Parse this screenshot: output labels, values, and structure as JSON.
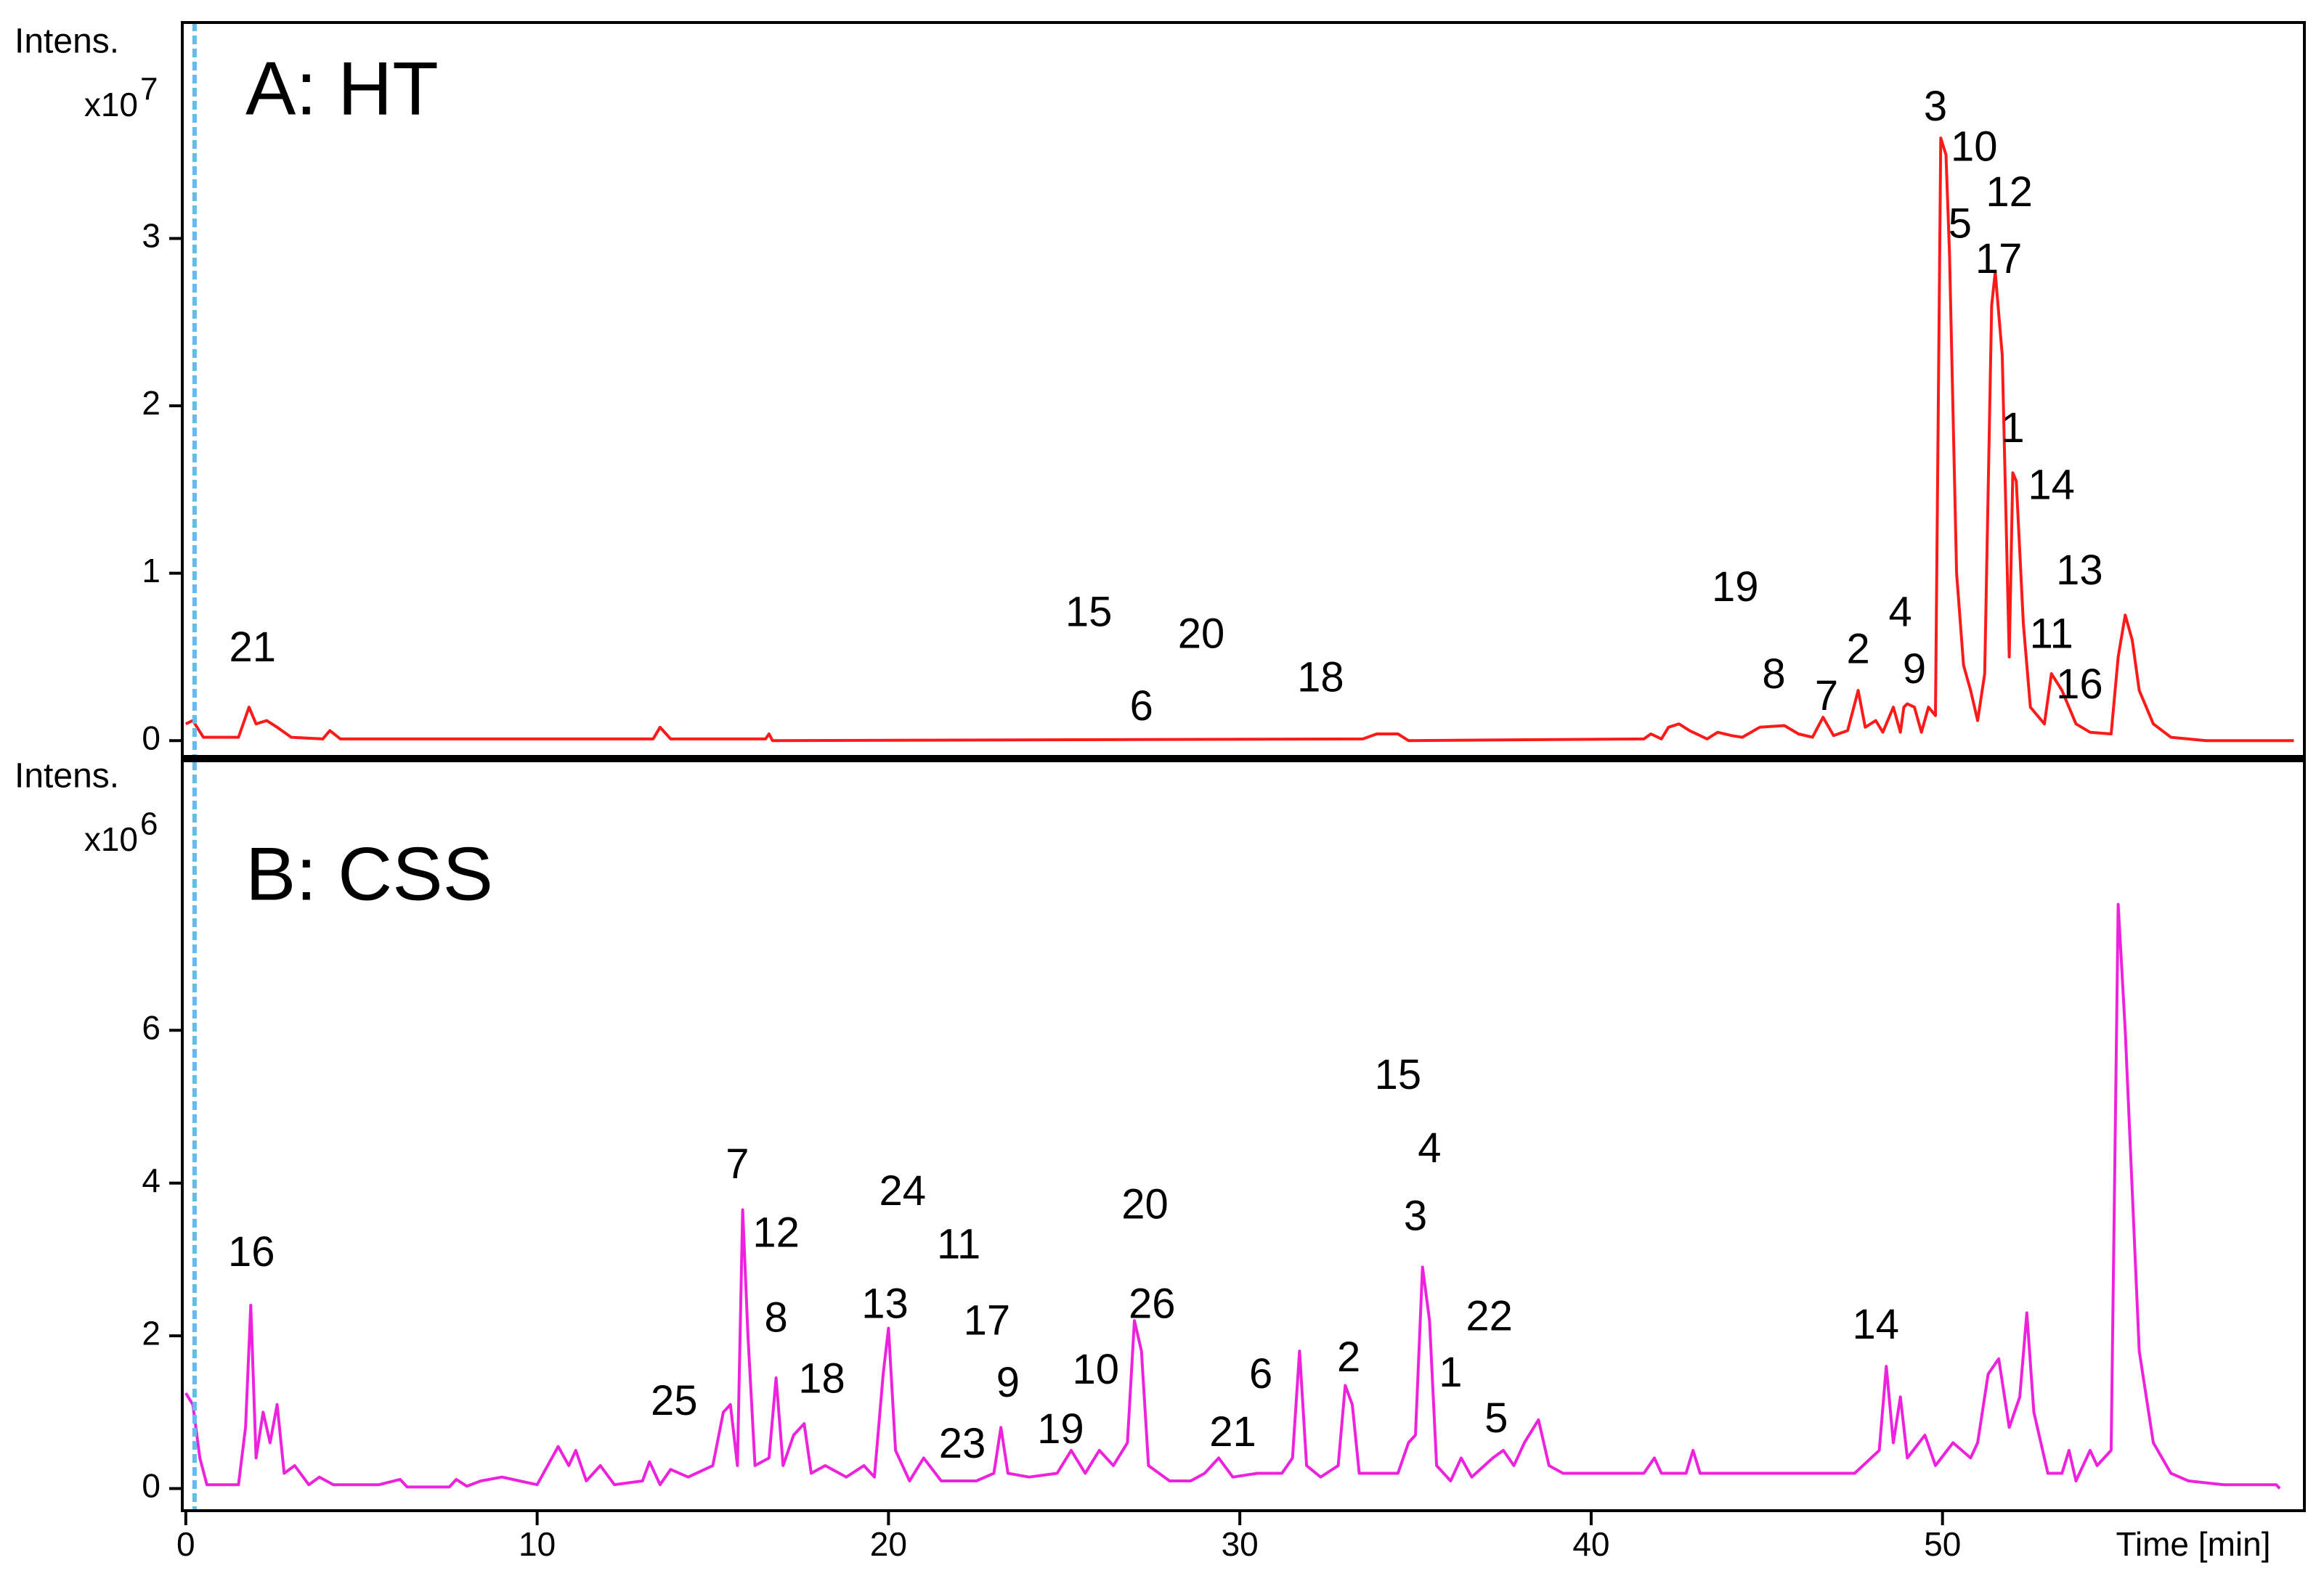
{
  "chart_data": [
    {
      "type": "line",
      "title": "A: HT",
      "ylabel": "Intens.",
      "y_multiplier": "x10",
      "y_exponent": "7",
      "color": "#ff1a1a",
      "xlim": [
        -0.1,
        60.3
      ],
      "ylim": [
        -0.09,
        4.29
      ],
      "yticks": [
        0,
        1,
        2,
        3
      ],
      "vline_x": 0.25,
      "vline_color": "#66bbee",
      "x": [
        0,
        0.2,
        0.5,
        1.5,
        1.8,
        2.0,
        2.3,
        2.6,
        3.0,
        3.9,
        4.1,
        4.4,
        13.3,
        13.5,
        13.8,
        16.5,
        16.6,
        16.7,
        33.5,
        33.9,
        34.5,
        34.8,
        41.5,
        41.7,
        42.0,
        42.2,
        42.5,
        42.8,
        43.3,
        43.6,
        44.0,
        44.3,
        44.8,
        45.5,
        45.9,
        46.3,
        46.6,
        46.9,
        47.3,
        47.6,
        47.8,
        48.1,
        48.3,
        48.6,
        48.8,
        48.9,
        49.0,
        49.2,
        49.4,
        49.6,
        49.8,
        49.95,
        50.1,
        50.2,
        50.4,
        50.6,
        50.8,
        51.0,
        51.2,
        51.4,
        51.5,
        51.7,
        51.9,
        52.0,
        52.1,
        52.3,
        52.5,
        52.9,
        53.1,
        53.4,
        53.8,
        54.2,
        54.8,
        55.0,
        55.2,
        55.4,
        55.6,
        56.0,
        56.5,
        57.5,
        60.0
      ],
      "values": [
        0.1,
        0.12,
        0.02,
        0.02,
        0.2,
        0.1,
        0.12,
        0.08,
        0.02,
        0.01,
        0.06,
        0.01,
        0.01,
        0.08,
        0.01,
        0.01,
        0.04,
        0,
        0.01,
        0.04,
        0.04,
        0,
        0.01,
        0.04,
        0.01,
        0.08,
        0.1,
        0.06,
        0.01,
        0.05,
        0.03,
        0.02,
        0.08,
        0.09,
        0.04,
        0.02,
        0.14,
        0.03,
        0.06,
        0.3,
        0.08,
        0.12,
        0.05,
        0.2,
        0.05,
        0.2,
        0.22,
        0.2,
        0.05,
        0.2,
        0.15,
        3.6,
        3.5,
        2.9,
        1.0,
        0.45,
        0.3,
        0.12,
        0.4,
        2.6,
        2.8,
        2.3,
        0.5,
        1.6,
        1.55,
        0.7,
        0.2,
        0.1,
        0.4,
        0.3,
        0.1,
        0.05,
        0.04,
        0.5,
        0.75,
        0.6,
        0.3,
        0.1,
        0.02,
        0,
        0
      ],
      "annotations": [
        {
          "text": "3",
          "x": 49.8,
          "y": 3.77
        },
        {
          "text": "10",
          "x": 50.9,
          "y": 3.53
        },
        {
          "text": "12",
          "x": 51.9,
          "y": 3.26
        },
        {
          "text": "5",
          "x": 50.5,
          "y": 3.07
        },
        {
          "text": "17",
          "x": 51.6,
          "y": 2.86
        },
        {
          "text": "1",
          "x": 52.0,
          "y": 1.85
        },
        {
          "text": "14",
          "x": 53.1,
          "y": 1.51
        },
        {
          "text": "13",
          "x": 53.9,
          "y": 1.0
        },
        {
          "text": "19",
          "x": 44.1,
          "y": 0.9
        },
        {
          "text": "4",
          "x": 48.8,
          "y": 0.75
        },
        {
          "text": "2",
          "x": 47.6,
          "y": 0.53
        },
        {
          "text": "11",
          "x": 53.1,
          "y": 0.62
        },
        {
          "text": "15",
          "x": 25.7,
          "y": 0.75
        },
        {
          "text": "20",
          "x": 28.9,
          "y": 0.62
        },
        {
          "text": "18",
          "x": 32.3,
          "y": 0.36
        },
        {
          "text": "8",
          "x": 45.2,
          "y": 0.38
        },
        {
          "text": "9",
          "x": 49.2,
          "y": 0.41
        },
        {
          "text": "7",
          "x": 46.7,
          "y": 0.25
        },
        {
          "text": "16",
          "x": 53.9,
          "y": 0.32
        },
        {
          "text": "6",
          "x": 27.2,
          "y": 0.19
        },
        {
          "text": "21",
          "x": 1.9,
          "y": 0.54
        }
      ]
    },
    {
      "type": "line",
      "title": "B: CSS",
      "ylabel": "Intens.",
      "y_multiplier": "x10",
      "y_exponent": "6",
      "color": "#ee22dd",
      "xlim": [
        -0.1,
        60.3
      ],
      "ylim": [
        -0.29,
        9.52
      ],
      "yticks": [
        0,
        2,
        4,
        6
      ],
      "xticks": [
        0,
        10,
        20,
        30,
        40,
        50
      ],
      "xlabel": "Time [min]",
      "vline_x": 0.25,
      "vline_color": "#66bbee",
      "x": [
        0,
        0.2,
        0.4,
        0.6,
        1.5,
        1.7,
        1.85,
        2.0,
        2.2,
        2.4,
        2.6,
        2.8,
        3.1,
        3.5,
        3.8,
        4.2,
        5.0,
        5.5,
        6.1,
        6.3,
        7.5,
        7.7,
        8.0,
        8.4,
        9.0,
        9.5,
        10.0,
        10.6,
        10.9,
        11.1,
        11.4,
        11.8,
        12.2,
        13.0,
        13.2,
        13.5,
        13.8,
        14.3,
        15.0,
        15.3,
        15.5,
        15.7,
        15.85,
        16.0,
        16.2,
        16.6,
        16.8,
        17.0,
        17.3,
        17.6,
        17.8,
        18.2,
        18.8,
        19.3,
        19.6,
        19.85,
        20.0,
        20.2,
        20.6,
        21.0,
        21.5,
        22.5,
        23.0,
        23.2,
        23.4,
        24.0,
        24.8,
        25.2,
        25.6,
        26.0,
        26.4,
        26.8,
        27.0,
        27.2,
        27.4,
        28.0,
        28.6,
        29.0,
        29.4,
        29.8,
        30.5,
        31.2,
        31.5,
        31.7,
        31.9,
        32.3,
        32.8,
        33.0,
        33.2,
        33.4,
        34.5,
        34.8,
        35.0,
        35.2,
        35.4,
        35.6,
        36.0,
        36.3,
        36.6,
        37.2,
        37.5,
        37.8,
        38.1,
        38.5,
        38.8,
        39.2,
        41.5,
        41.8,
        42.0,
        42.7,
        42.9,
        43.1,
        47.5,
        48.2,
        48.4,
        48.6,
        48.8,
        49.0,
        49.5,
        49.8,
        50.3,
        50.8,
        51.0,
        51.3,
        51.6,
        51.9,
        52.2,
        52.4,
        52.6,
        53.0,
        53.4,
        53.6,
        53.8,
        54.2,
        54.4,
        54.8,
        55.0,
        55.2,
        55.6,
        56.0,
        56.5,
        57.0,
        58.0,
        59.5,
        59.6
      ],
      "values": [
        1.25,
        1.1,
        0.4,
        0.05,
        0.05,
        0.8,
        2.4,
        0.4,
        1.0,
        0.6,
        1.1,
        0.2,
        0.3,
        0.05,
        0.15,
        0.05,
        0.05,
        0.05,
        0.12,
        0.02,
        0.02,
        0.12,
        0.03,
        0.1,
        0.15,
        0.1,
        0.05,
        0.55,
        0.3,
        0.5,
        0.1,
        0.3,
        0.05,
        0.1,
        0.35,
        0.05,
        0.25,
        0.15,
        0.3,
        1.0,
        1.1,
        0.3,
        3.65,
        2.0,
        0.3,
        0.4,
        1.45,
        0.3,
        0.7,
        0.85,
        0.2,
        0.3,
        0.15,
        0.3,
        0.15,
        1.5,
        2.1,
        0.5,
        0.1,
        0.4,
        0.1,
        0.1,
        0.2,
        0.8,
        0.2,
        0.15,
        0.2,
        0.5,
        0.2,
        0.5,
        0.3,
        0.6,
        2.2,
        1.8,
        0.3,
        0.1,
        0.1,
        0.2,
        0.4,
        0.15,
        0.2,
        0.2,
        0.4,
        1.8,
        0.3,
        0.15,
        0.3,
        1.35,
        1.1,
        0.2,
        0.2,
        0.6,
        0.7,
        2.9,
        2.2,
        0.3,
        0.1,
        0.4,
        0.15,
        0.4,
        0.5,
        0.3,
        0.6,
        0.9,
        0.3,
        0.2,
        0.2,
        0.4,
        0.2,
        0.2,
        0.5,
        0.2,
        0.2,
        0.5,
        1.6,
        0.6,
        1.2,
        0.4,
        0.7,
        0.3,
        0.6,
        0.4,
        0.6,
        1.5,
        1.7,
        0.8,
        1.2,
        2.3,
        1.0,
        0.2,
        0.2,
        0.5,
        0.1,
        0.5,
        0.3,
        0.5,
        7.65,
        6.0,
        1.8,
        0.6,
        0.2,
        0.1,
        0.05,
        0.05,
        0
      ],
      "annotations": [
        {
          "text": "16",
          "x": 1.87,
          "y": 3.06
        },
        {
          "text": "7",
          "x": 15.7,
          "y": 4.21
        },
        {
          "text": "12",
          "x": 16.8,
          "y": 3.31
        },
        {
          "text": "8",
          "x": 16.8,
          "y": 2.2
        },
        {
          "text": "18",
          "x": 18.1,
          "y": 1.4
        },
        {
          "text": "25",
          "x": 13.9,
          "y": 1.11
        },
        {
          "text": "24",
          "x": 20.4,
          "y": 3.86
        },
        {
          "text": "11",
          "x": 22.0,
          "y": 3.16
        },
        {
          "text": "13",
          "x": 19.9,
          "y": 2.38
        },
        {
          "text": "17",
          "x": 22.8,
          "y": 2.16
        },
        {
          "text": "9",
          "x": 23.4,
          "y": 1.35
        },
        {
          "text": "23",
          "x": 22.1,
          "y": 0.55
        },
        {
          "text": "19",
          "x": 24.9,
          "y": 0.74
        },
        {
          "text": "10",
          "x": 25.9,
          "y": 1.52
        },
        {
          "text": "20",
          "x": 27.3,
          "y": 3.68
        },
        {
          "text": "26",
          "x": 27.5,
          "y": 2.38
        },
        {
          "text": "21",
          "x": 29.8,
          "y": 0.7
        },
        {
          "text": "6",
          "x": 30.6,
          "y": 1.46
        },
        {
          "text": "2",
          "x": 33.1,
          "y": 1.68
        },
        {
          "text": "15",
          "x": 34.5,
          "y": 5.38
        },
        {
          "text": "4",
          "x": 35.4,
          "y": 4.42
        },
        {
          "text": "3",
          "x": 35.0,
          "y": 3.53
        },
        {
          "text": "22",
          "x": 37.1,
          "y": 2.22
        },
        {
          "text": "1",
          "x": 36.0,
          "y": 1.48
        },
        {
          "text": "5",
          "x": 37.3,
          "y": 0.88
        },
        {
          "text": "14",
          "x": 48.1,
          "y": 2.11
        }
      ]
    }
  ]
}
